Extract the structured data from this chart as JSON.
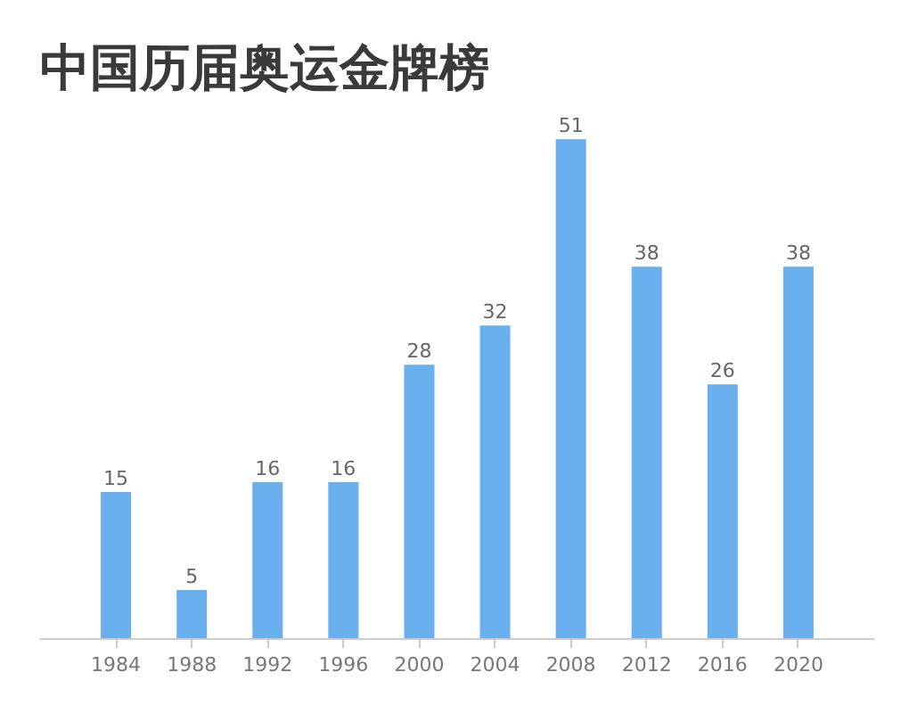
{
  "chart_data": {
    "type": "bar",
    "title": "中国历届奥运金牌榜",
    "categories": [
      "1984",
      "1988",
      "1992",
      "1996",
      "2000",
      "2004",
      "2008",
      "2012",
      "2016",
      "2020"
    ],
    "values": [
      15,
      5,
      16,
      16,
      28,
      32,
      51,
      38,
      26,
      38
    ],
    "color": "#6ab0ee",
    "data_labels": true
  }
}
